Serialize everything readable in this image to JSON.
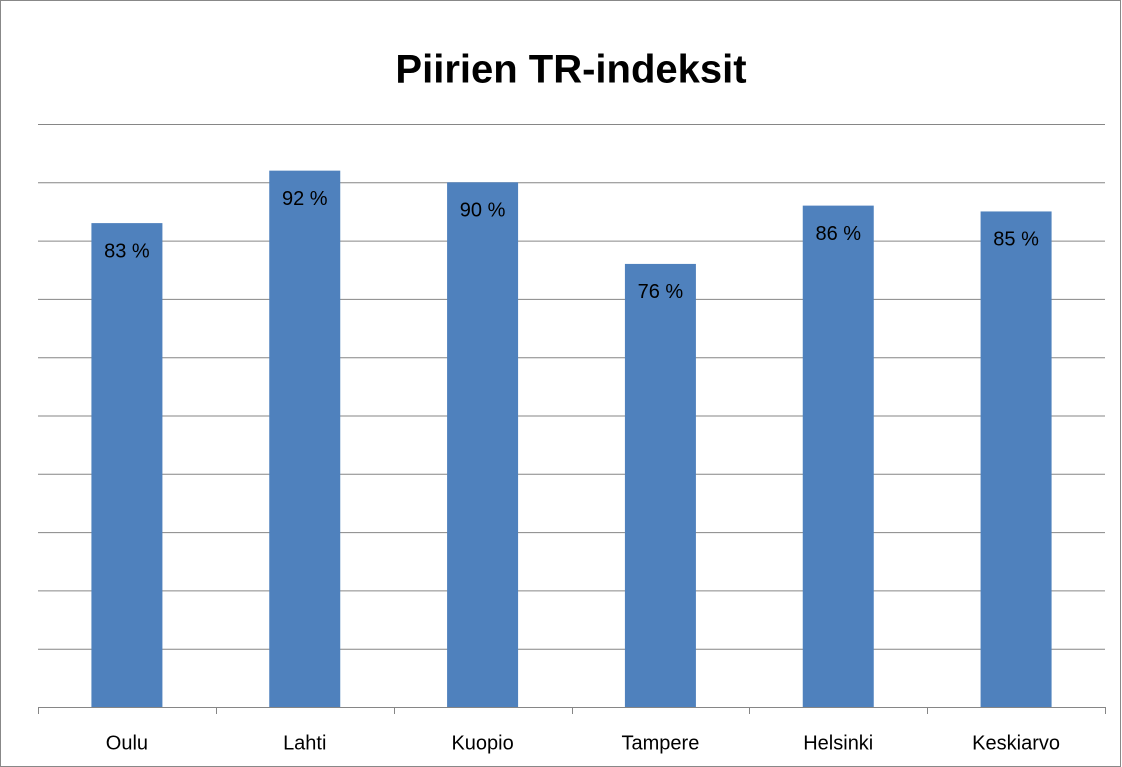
{
  "chart_data": {
    "type": "bar",
    "title": "Piirien TR-indeksit",
    "categories": [
      "Oulu",
      "Lahti",
      "Kuopio",
      "Tampere",
      "Helsinki",
      "Keskiarvo"
    ],
    "values": [
      83,
      92,
      90,
      76,
      86,
      85
    ],
    "value_labels": [
      "83 %",
      "92 %",
      "90 %",
      "76 %",
      "86 %",
      "85 %"
    ],
    "color": "#4f81bd",
    "ylim": [
      0,
      100
    ],
    "yticks": [
      0,
      10,
      20,
      30,
      40,
      50,
      60,
      70,
      80,
      90,
      100
    ],
    "ytick_labels": false,
    "grid": true
  }
}
